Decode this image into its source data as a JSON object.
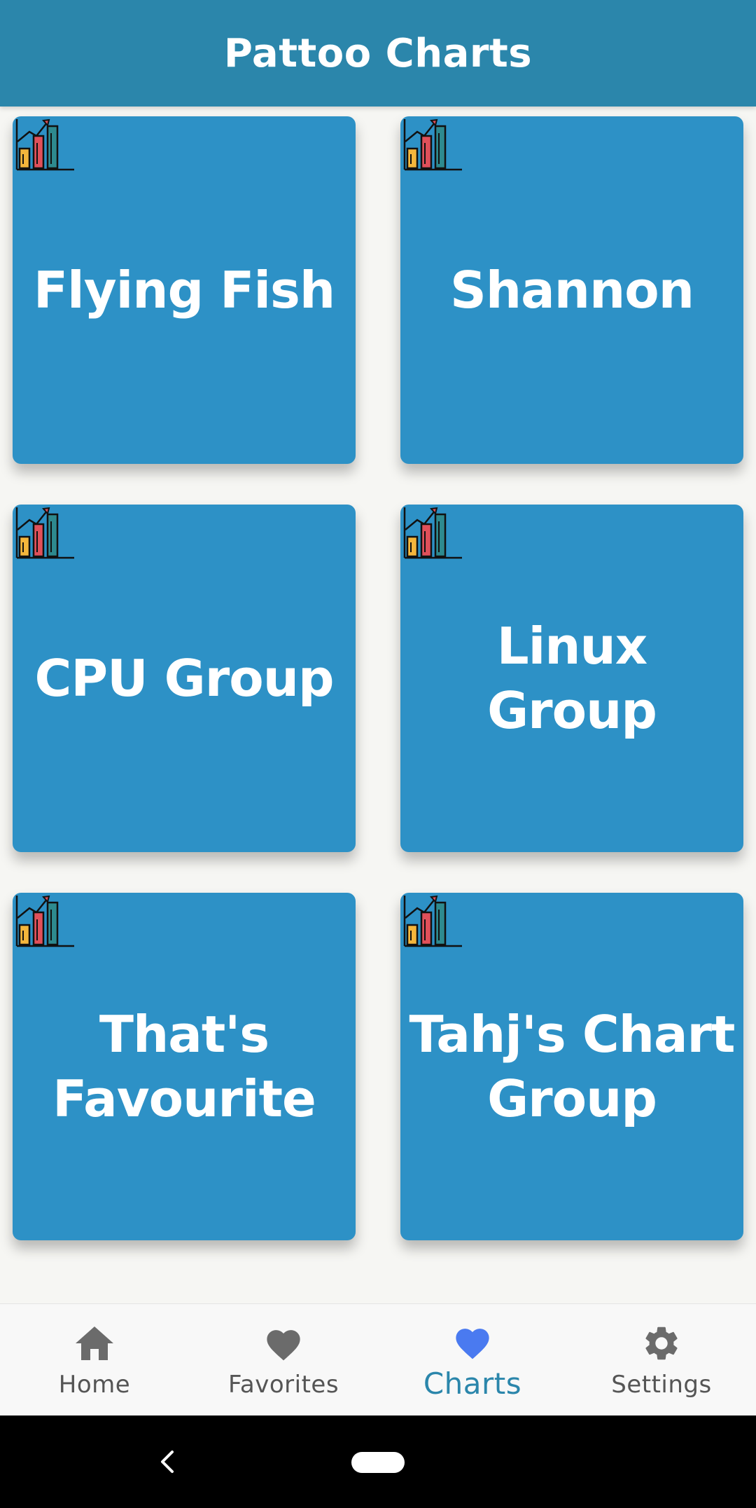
{
  "app_bar": {
    "title": "Pattoo Charts"
  },
  "tiles": [
    {
      "label": "Flying Fish",
      "icon": "bar-chart-icon"
    },
    {
      "label": "Shannon",
      "icon": "bar-chart-icon"
    },
    {
      "label": "CPU Group",
      "icon": "bar-chart-icon"
    },
    {
      "label": "Linux Group",
      "icon": "bar-chart-icon"
    },
    {
      "label": "That's Favourite",
      "icon": "bar-chart-icon"
    },
    {
      "label": "Tahj's Chart Group",
      "icon": "bar-chart-icon"
    }
  ],
  "bottom_nav": {
    "items": [
      {
        "label": "Home",
        "icon": "home-icon",
        "active": false
      },
      {
        "label": "Favorites",
        "icon": "heart-icon",
        "active": false
      },
      {
        "label": "Charts",
        "icon": "heart-icon",
        "active": true
      },
      {
        "label": "Settings",
        "icon": "gear-icon",
        "active": false
      }
    ]
  },
  "colors": {
    "app_bar": "#2b86ab",
    "tile": "#2d91c6",
    "background": "#f6f6f3",
    "nav_active_icon": "#4a7af0",
    "nav_active_label": "#2b86ab",
    "nav_inactive": "#6b6b6b"
  }
}
